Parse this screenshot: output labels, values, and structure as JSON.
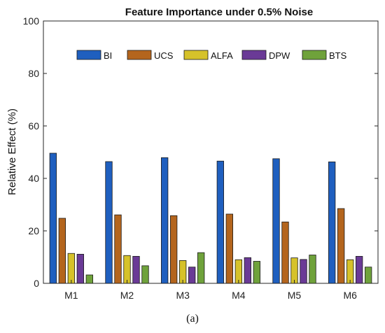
{
  "chart_data": {
    "type": "bar",
    "title": "Feature Importance under 0.5% Noise",
    "xlabel": "",
    "ylabel": "Relative Effect (%)",
    "ylim": [
      0,
      100
    ],
    "yticks": [
      0,
      20,
      40,
      60,
      80,
      100
    ],
    "categories": [
      "M1",
      "M2",
      "M3",
      "M4",
      "M5",
      "M6"
    ],
    "series": [
      {
        "name": "BI",
        "color": "#1f5fbf",
        "values": [
          49.6,
          46.4,
          47.9,
          46.6,
          47.5,
          46.3
        ]
      },
      {
        "name": "UCS",
        "color": "#b4651d",
        "values": [
          24.8,
          26.1,
          25.8,
          26.4,
          23.4,
          28.5
        ]
      },
      {
        "name": "ALFA",
        "color": "#d6c22a",
        "values": [
          11.4,
          10.6,
          8.7,
          9.0,
          9.7,
          9.0
        ]
      },
      {
        "name": "DPW",
        "color": "#6a3a96",
        "values": [
          11.1,
          10.3,
          6.2,
          9.8,
          9.1,
          10.3
        ]
      },
      {
        "name": "BTS",
        "color": "#6fa23b",
        "values": [
          3.2,
          6.7,
          11.7,
          8.4,
          10.8,
          6.2
        ]
      }
    ],
    "grid": false,
    "legend_position": "top, horizontal"
  },
  "caption": "(a)"
}
